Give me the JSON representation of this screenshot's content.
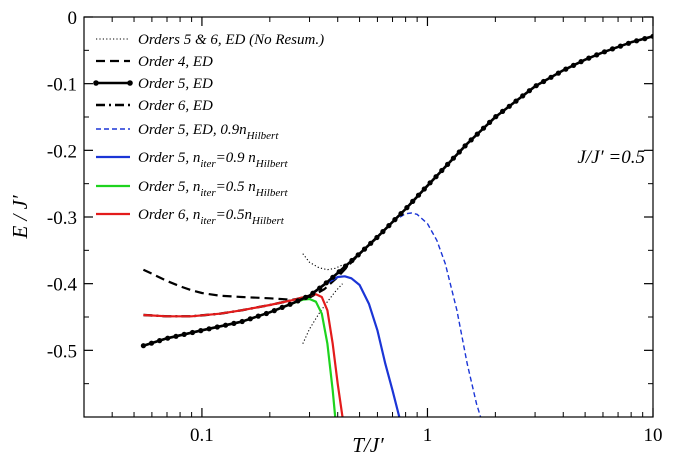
{
  "chart_data": {
    "type": "line",
    "xlabel": "T/J′",
    "ylabel": "E / J′",
    "xscale": "log",
    "xlim": [
      0.03,
      10
    ],
    "ylim": [
      -0.6,
      0
    ],
    "x_ticks": [
      0.1,
      1,
      10
    ],
    "x_tick_labels": [
      "0.1",
      "1",
      "10"
    ],
    "y_ticks": [
      0,
      -0.1,
      -0.2,
      -0.3,
      -0.4,
      -0.5
    ],
    "y_tick_labels": [
      "0",
      "-0.1",
      "-0.2",
      "-0.3",
      "-0.4",
      "-0.5"
    ],
    "grid": false,
    "legend_position": "top-left",
    "annotation": "J/J′ =0.5",
    "series": [
      {
        "name": "Orders 5 & 6, ED (No Resum.)",
        "legend_parts": [
          "Orders 5 & 6, ED (No Resum.)"
        ],
        "color": "#000000",
        "style": "dotted",
        "segments": [
          [
            [
              0.28,
              -0.355
            ],
            [
              0.3,
              -0.368
            ],
            [
              0.33,
              -0.376
            ],
            [
              0.36,
              -0.379
            ],
            [
              0.39,
              -0.377
            ],
            [
              0.42,
              -0.372
            ]
          ],
          [
            [
              0.28,
              -0.49
            ],
            [
              0.3,
              -0.468
            ],
            [
              0.33,
              -0.445
            ],
            [
              0.36,
              -0.427
            ],
            [
              0.39,
              -0.412
            ],
            [
              0.42,
              -0.4
            ]
          ]
        ]
      },
      {
        "name": "Order 4, ED",
        "legend_parts": [
          "Order 4, ED"
        ],
        "color": "#000000",
        "style": "dashed",
        "points": [
          [
            0.055,
            -0.379
          ],
          [
            0.06,
            -0.385
          ],
          [
            0.07,
            -0.396
          ],
          [
            0.08,
            -0.404
          ],
          [
            0.09,
            -0.41
          ],
          [
            0.1,
            -0.414
          ],
          [
            0.12,
            -0.418
          ],
          [
            0.15,
            -0.42
          ],
          [
            0.2,
            -0.422
          ],
          [
            0.25,
            -0.424
          ],
          [
            0.3,
            -0.421
          ],
          [
            0.35,
            -0.408
          ],
          [
            0.4,
            -0.39
          ],
          [
            0.5,
            -0.355
          ]
        ]
      },
      {
        "name": "Order 5, ED",
        "legend_parts": [
          "Order 5, ED"
        ],
        "color": "#000000",
        "style": "solid-markers",
        "points": [
          [
            0.055,
            -0.493
          ],
          [
            0.07,
            -0.482
          ],
          [
            0.1,
            -0.47
          ],
          [
            0.15,
            -0.457
          ],
          [
            0.2,
            -0.443
          ],
          [
            0.25,
            -0.43
          ],
          [
            0.3,
            -0.418
          ],
          [
            0.35,
            -0.401
          ],
          [
            0.4,
            -0.384
          ],
          [
            0.5,
            -0.355
          ],
          [
            0.6,
            -0.33
          ],
          [
            0.8,
            -0.288
          ],
          [
            1,
            -0.253
          ],
          [
            1.5,
            -0.19
          ],
          [
            2,
            -0.15
          ],
          [
            3,
            -0.104
          ],
          [
            4,
            -0.08
          ],
          [
            5,
            -0.064
          ],
          [
            6,
            -0.053
          ],
          [
            8,
            -0.038
          ],
          [
            10,
            -0.029
          ]
        ]
      },
      {
        "name": "Order 6, ED",
        "legend_parts": [
          "Order 6, ED"
        ],
        "color": "#000000",
        "style": "dashdot",
        "points": [
          [
            0.055,
            -0.447
          ],
          [
            0.07,
            -0.449
          ],
          [
            0.09,
            -0.449
          ],
          [
            0.12,
            -0.445
          ],
          [
            0.15,
            -0.44
          ],
          [
            0.2,
            -0.432
          ],
          [
            0.25,
            -0.425
          ],
          [
            0.3,
            -0.418
          ],
          [
            0.35,
            -0.401
          ],
          [
            0.4,
            -0.384
          ],
          [
            0.5,
            -0.355
          ],
          [
            0.6,
            -0.33
          ],
          [
            0.8,
            -0.288
          ],
          [
            1,
            -0.253
          ]
        ]
      },
      {
        "name": "Order 5, ED, 0.9nHilbert",
        "legend_parts": [
          "Order 5, ED,  0.9",
          "n",
          "Hilbert"
        ],
        "color": "#1b35d6",
        "style": "dashed-thin",
        "points": [
          [
            0.3,
            -0.418
          ],
          [
            0.4,
            -0.384
          ],
          [
            0.5,
            -0.355
          ],
          [
            0.6,
            -0.33
          ],
          [
            0.7,
            -0.307
          ],
          [
            0.8,
            -0.295
          ],
          [
            0.85,
            -0.294
          ],
          [
            0.9,
            -0.296
          ],
          [
            1.0,
            -0.31
          ],
          [
            1.1,
            -0.335
          ],
          [
            1.2,
            -0.37
          ],
          [
            1.35,
            -0.44
          ],
          [
            1.5,
            -0.52
          ],
          [
            1.65,
            -0.58
          ],
          [
            1.72,
            -0.6
          ]
        ]
      },
      {
        "name": "Order 5, niter=0.9 nHilbert",
        "legend_parts": [
          "Order 5, ",
          "n",
          "iter",
          "=0.9 ",
          "n",
          "Hilbert"
        ],
        "color": "#1b35d6",
        "style": "solid",
        "points": [
          [
            0.3,
            -0.418
          ],
          [
            0.35,
            -0.401
          ],
          [
            0.4,
            -0.39
          ],
          [
            0.43,
            -0.389
          ],
          [
            0.46,
            -0.392
          ],
          [
            0.5,
            -0.402
          ],
          [
            0.55,
            -0.43
          ],
          [
            0.6,
            -0.47
          ],
          [
            0.65,
            -0.52
          ],
          [
            0.7,
            -0.56
          ],
          [
            0.75,
            -0.6
          ]
        ]
      },
      {
        "name": "Order 5, niter=0.5 nHilbert",
        "legend_parts": [
          "Order 5, ",
          "n",
          "iter",
          "=0.5 ",
          "n",
          "Hilbert"
        ],
        "color": "#1ed31e",
        "style": "solid",
        "points": [
          [
            0.055,
            -0.493
          ],
          [
            0.07,
            -0.482
          ],
          [
            0.1,
            -0.47
          ],
          [
            0.15,
            -0.457
          ],
          [
            0.2,
            -0.443
          ],
          [
            0.25,
            -0.43
          ],
          [
            0.28,
            -0.424
          ],
          [
            0.3,
            -0.423
          ],
          [
            0.32,
            -0.427
          ],
          [
            0.34,
            -0.445
          ],
          [
            0.36,
            -0.49
          ],
          [
            0.38,
            -0.56
          ],
          [
            0.39,
            -0.6
          ]
        ]
      },
      {
        "name": "Order 6, niter=0.5nHilbert",
        "legend_parts": [
          "Order 6, ",
          "n",
          "iter",
          "=0.5",
          "n",
          "Hilbert"
        ],
        "color": "#e31b1b",
        "style": "solid",
        "points": [
          [
            0.055,
            -0.447
          ],
          [
            0.07,
            -0.449
          ],
          [
            0.09,
            -0.449
          ],
          [
            0.12,
            -0.445
          ],
          [
            0.15,
            -0.44
          ],
          [
            0.2,
            -0.432
          ],
          [
            0.25,
            -0.425
          ],
          [
            0.3,
            -0.418
          ],
          [
            0.32,
            -0.416
          ],
          [
            0.34,
            -0.42
          ],
          [
            0.36,
            -0.44
          ],
          [
            0.38,
            -0.49
          ],
          [
            0.4,
            -0.55
          ],
          [
            0.42,
            -0.6
          ]
        ]
      }
    ]
  }
}
